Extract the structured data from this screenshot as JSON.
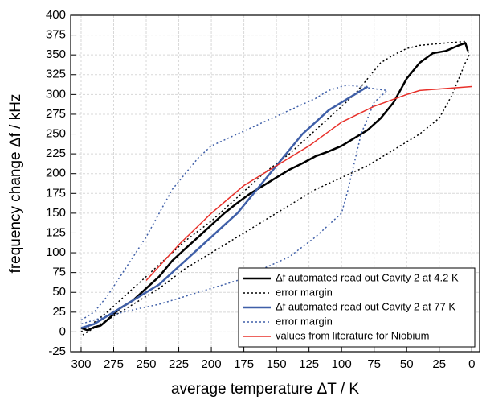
{
  "chart_data": {
    "type": "line",
    "x_label": "average temperature ΔT / K",
    "y_label": "frequency change Δf / kHz",
    "xlim": [
      308,
      -6
    ],
    "ylim": [
      -25,
      400
    ],
    "xticks": [
      300,
      275,
      250,
      225,
      200,
      175,
      150,
      125,
      100,
      75,
      50,
      25,
      0
    ],
    "yticks": [
      -25,
      0,
      25,
      50,
      75,
      100,
      125,
      150,
      175,
      200,
      225,
      250,
      275,
      300,
      325,
      350,
      375,
      400
    ],
    "grid": true,
    "legend": "lower right",
    "series": [
      {
        "name": "Δf automated read out Cavity 2 at 4.2 K",
        "color": "#000000",
        "style": "solid",
        "width": 2.5,
        "x": [
          300,
          295,
          290,
          285,
          280,
          270,
          260,
          250,
          240,
          230,
          220,
          210,
          200,
          190,
          180,
          170,
          160,
          150,
          140,
          130,
          120,
          110,
          100,
          90,
          80,
          70,
          60,
          50,
          40,
          30,
          20,
          10,
          5,
          3
        ],
        "values": [
          5,
          2,
          6,
          8,
          15,
          30,
          40,
          55,
          70,
          90,
          105,
          120,
          135,
          150,
          163,
          175,
          185,
          195,
          205,
          213,
          222,
          228,
          235,
          245,
          255,
          270,
          290,
          320,
          340,
          352,
          355,
          362,
          365,
          355
        ]
      },
      {
        "name": "error margin",
        "color": "#000000",
        "style": "dotted",
        "width": 1.5,
        "x": [
          300,
          290,
          280,
          260,
          240,
          220,
          200,
          180,
          160,
          140,
          120,
          100,
          90,
          80,
          70,
          60,
          50,
          40,
          20,
          5,
          2,
          5,
          15,
          25,
          40,
          60,
          80,
          100,
          120,
          140,
          160,
          180,
          200,
          220,
          240,
          260,
          280,
          300
        ],
        "values": [
          0,
          12,
          25,
          55,
          85,
          115,
          140,
          170,
          200,
          225,
          255,
          285,
          300,
          320,
          340,
          350,
          358,
          362,
          365,
          367,
          350,
          340,
          300,
          270,
          250,
          230,
          210,
          195,
          180,
          160,
          140,
          120,
          100,
          80,
          55,
          35,
          15,
          -5
        ]
      },
      {
        "name": "Δf automated read out Cavity 2 at 77 K",
        "color": "#3f5fa8",
        "style": "solid",
        "width": 2.5,
        "x": [
          300,
          290,
          280,
          270,
          260,
          250,
          240,
          230,
          220,
          210,
          200,
          190,
          180,
          170,
          160,
          150,
          140,
          130,
          120,
          110,
          100,
          90,
          80
        ],
        "values": [
          5,
          10,
          20,
          30,
          40,
          50,
          60,
          75,
          90,
          105,
          120,
          135,
          150,
          170,
          190,
          210,
          230,
          250,
          265,
          280,
          290,
          300,
          310
        ]
      },
      {
        "name": "error margin",
        "color": "#3f5fa8",
        "style": "dotted",
        "width": 1.5,
        "x": [
          300,
          290,
          280,
          270,
          260,
          250,
          240,
          230,
          220,
          210,
          200,
          180,
          160,
          140,
          120,
          110,
          100,
          95,
          65,
          75,
          85,
          95,
          100,
          120,
          140,
          160,
          180,
          200,
          220,
          240,
          260,
          280,
          300
        ],
        "values": [
          15,
          25,
          45,
          70,
          95,
          120,
          150,
          180,
          200,
          220,
          235,
          250,
          265,
          280,
          295,
          305,
          310,
          312,
          305,
          290,
          250,
          180,
          150,
          120,
          95,
          80,
          65,
          55,
          45,
          35,
          28,
          20,
          10
        ]
      },
      {
        "name": "values from literature for Niobium",
        "color": "#e8302a",
        "style": "solid",
        "width": 1.5,
        "x": [
          250,
          225,
          200,
          175,
          150,
          125,
          100,
          75,
          50,
          40,
          0
        ],
        "values": [
          65,
          110,
          150,
          185,
          210,
          235,
          265,
          285,
          300,
          305,
          310
        ]
      }
    ]
  }
}
